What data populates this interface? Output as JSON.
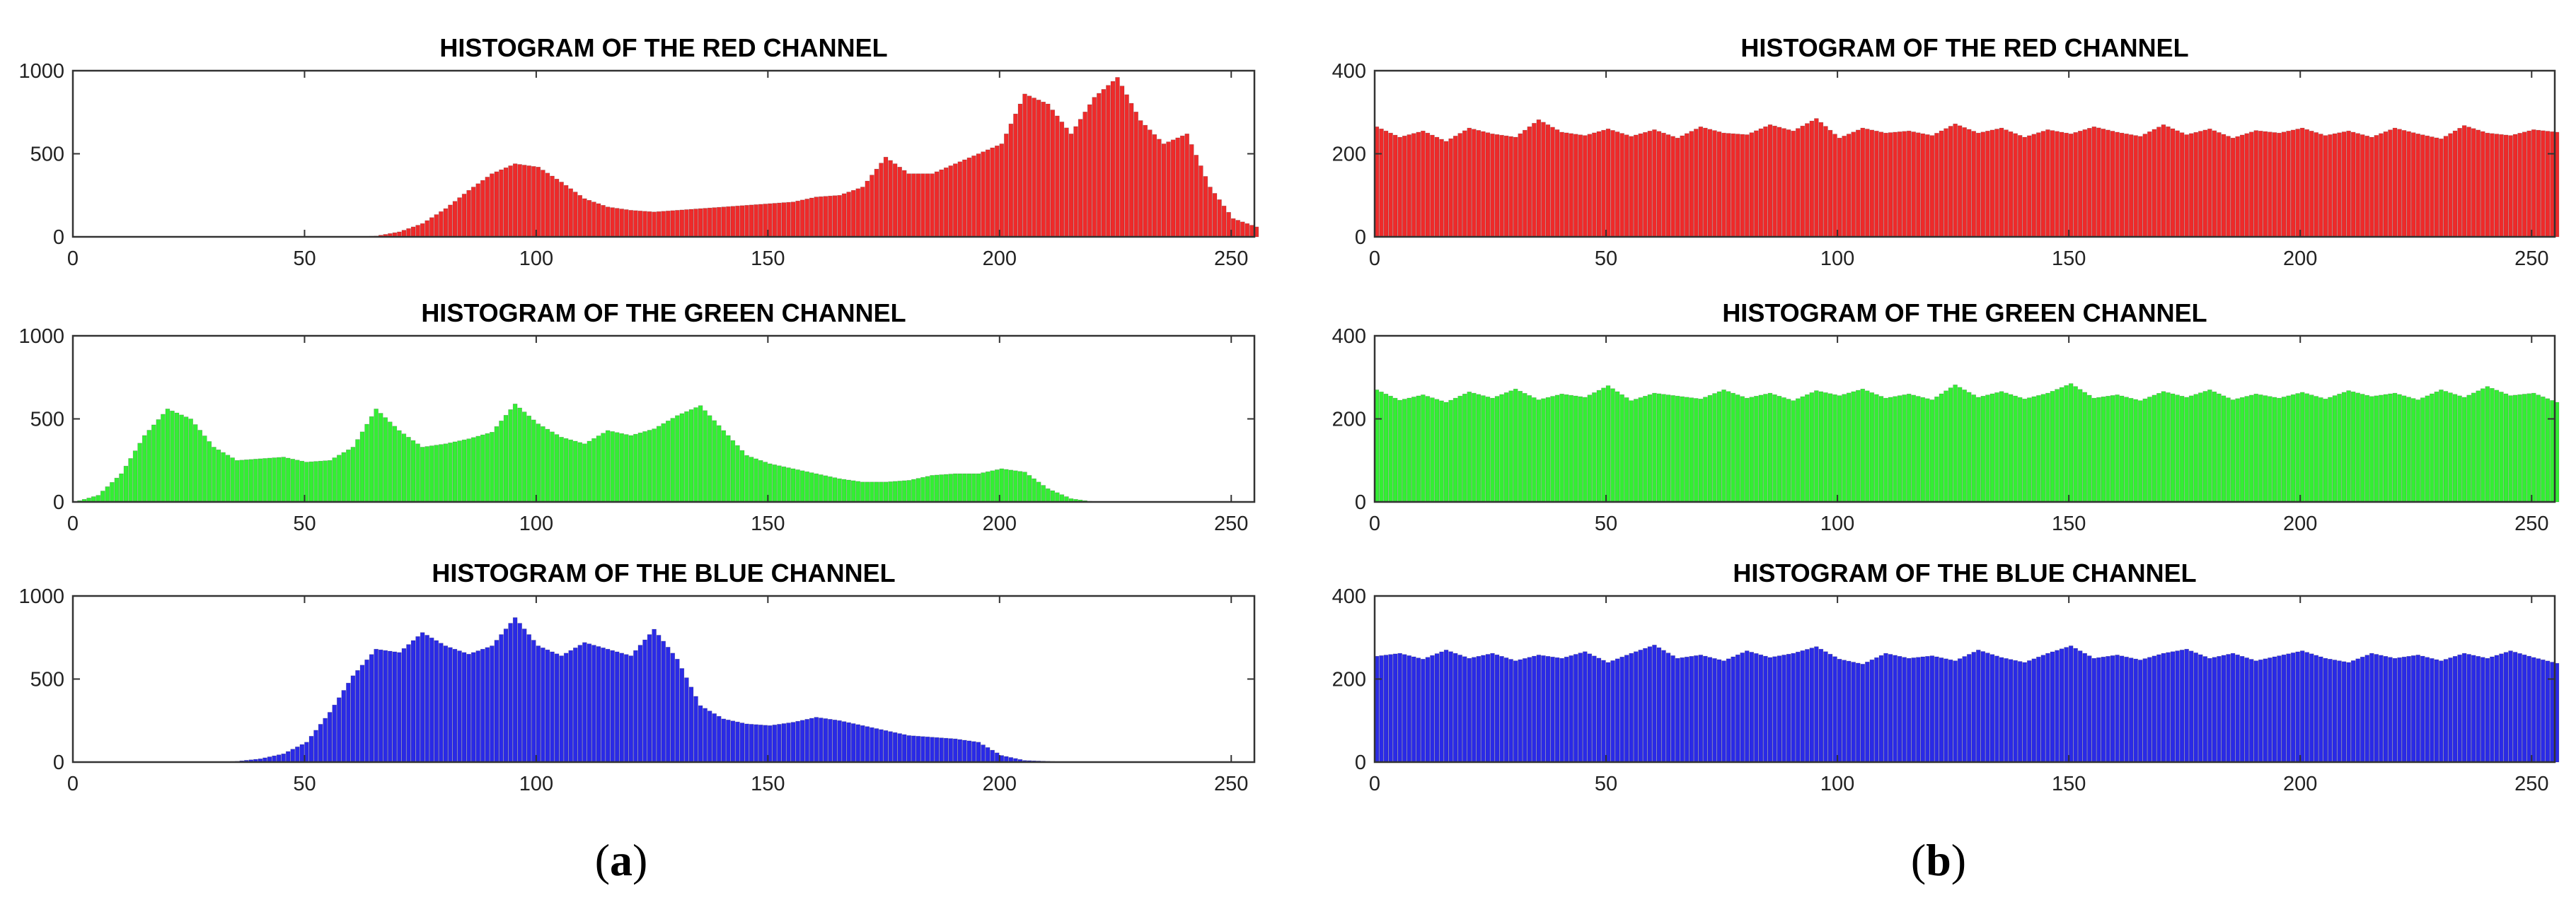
{
  "captions": [
    {
      "open": "(",
      "letter": "a",
      "close": ")"
    },
    {
      "open": "(",
      "letter": "b",
      "close": ")"
    }
  ],
  "chart_data": [
    {
      "type": "bar",
      "panel": "a",
      "title": "HISTOGRAM OF THE RED CHANNEL",
      "color": "#ee2a2a",
      "xlim": [
        0,
        255
      ],
      "ylim": [
        0,
        1000
      ],
      "xticks": [
        0,
        50,
        100,
        150,
        200,
        250
      ],
      "yticks": [
        0,
        500,
        1000
      ],
      "x": [
        0,
        5,
        10,
        15,
        20,
        25,
        30,
        35,
        40,
        45,
        50,
        55,
        60,
        65,
        70,
        75,
        80,
        85,
        90,
        95,
        100,
        105,
        110,
        115,
        120,
        125,
        130,
        135,
        140,
        145,
        150,
        155,
        160,
        165,
        170,
        175,
        180,
        185,
        190,
        195,
        200,
        205,
        210,
        215,
        220,
        225,
        230,
        235,
        240,
        245,
        250,
        255
      ],
      "values": [
        0,
        0,
        0,
        0,
        0,
        0,
        0,
        0,
        0,
        0,
        0,
        0,
        0,
        5,
        30,
        80,
        170,
        280,
        380,
        440,
        420,
        330,
        230,
        180,
        160,
        150,
        160,
        170,
        180,
        190,
        200,
        210,
        240,
        250,
        300,
        480,
        380,
        380,
        440,
        500,
        560,
        860,
        800,
        620,
        840,
        960,
        700,
        560,
        620,
        300,
        110,
        60
      ]
    },
    {
      "type": "bar",
      "panel": "a",
      "title": "HISTOGRAM OF THE GREEN CHANNEL",
      "color": "#33ee33",
      "xlim": [
        0,
        255
      ],
      "ylim": [
        0,
        1000
      ],
      "xticks": [
        0,
        50,
        100,
        150,
        200,
        250
      ],
      "yticks": [
        0,
        500,
        1000
      ],
      "x": [
        0,
        5,
        10,
        15,
        20,
        25,
        30,
        35,
        40,
        45,
        50,
        55,
        60,
        65,
        70,
        75,
        80,
        85,
        90,
        95,
        100,
        105,
        110,
        115,
        120,
        125,
        130,
        135,
        140,
        145,
        150,
        155,
        160,
        165,
        170,
        175,
        180,
        185,
        190,
        195,
        200,
        205,
        210,
        215,
        220,
        225,
        230,
        235,
        240,
        245,
        250,
        255
      ],
      "values": [
        0,
        40,
        170,
        400,
        560,
        500,
        330,
        250,
        260,
        270,
        240,
        250,
        330,
        560,
        430,
        330,
        350,
        380,
        420,
        590,
        470,
        390,
        350,
        430,
        400,
        440,
        520,
        580,
        430,
        280,
        230,
        200,
        170,
        140,
        120,
        120,
        130,
        160,
        170,
        170,
        200,
        180,
        80,
        20,
        0,
        0,
        0,
        0,
        0,
        0,
        0,
        0
      ]
    },
    {
      "type": "bar",
      "panel": "a",
      "title": "HISTOGRAM OF THE BLUE CHANNEL",
      "color": "#2a2ae6",
      "xlim": [
        0,
        255
      ],
      "ylim": [
        0,
        1000
      ],
      "xticks": [
        0,
        50,
        100,
        150,
        200,
        250
      ],
      "yticks": [
        0,
        500,
        1000
      ],
      "x": [
        0,
        5,
        10,
        15,
        20,
        25,
        30,
        35,
        40,
        45,
        50,
        55,
        60,
        65,
        70,
        75,
        80,
        85,
        90,
        95,
        100,
        105,
        110,
        115,
        120,
        125,
        130,
        135,
        140,
        145,
        150,
        155,
        160,
        165,
        170,
        175,
        180,
        185,
        190,
        195,
        200,
        205,
        210,
        215,
        220,
        225,
        230,
        235,
        240,
        245,
        250,
        255
      ],
      "values": [
        0,
        0,
        0,
        0,
        0,
        0,
        0,
        5,
        20,
        50,
        120,
        300,
        520,
        680,
        660,
        780,
        700,
        650,
        700,
        870,
        700,
        640,
        720,
        680,
        640,
        800,
        620,
        340,
        260,
        230,
        220,
        240,
        270,
        250,
        220,
        190,
        160,
        150,
        140,
        120,
        40,
        10,
        5,
        0,
        0,
        0,
        0,
        0,
        0,
        0,
        0,
        0
      ]
    },
    {
      "type": "bar",
      "panel": "b",
      "title": "HISTOGRAM OF THE RED CHANNEL",
      "color": "#ee2a2a",
      "xlim": [
        0,
        255
      ],
      "ylim": [
        0,
        400
      ],
      "xticks": [
        0,
        50,
        100,
        150,
        200,
        250
      ],
      "yticks": [
        0,
        200,
        400
      ],
      "x": [
        0,
        5,
        10,
        15,
        20,
        25,
        30,
        35,
        40,
        45,
        50,
        55,
        60,
        65,
        70,
        75,
        80,
        85,
        90,
        95,
        100,
        105,
        110,
        115,
        120,
        125,
        130,
        135,
        140,
        145,
        150,
        155,
        160,
        165,
        170,
        175,
        180,
        185,
        190,
        195,
        200,
        205,
        210,
        215,
        220,
        225,
        230,
        235,
        240,
        245,
        250,
        255
      ],
      "values": [
        265,
        240,
        255,
        230,
        262,
        248,
        240,
        282,
        252,
        244,
        260,
        242,
        258,
        238,
        265,
        250,
        246,
        270,
        255,
        285,
        238,
        262,
        250,
        255,
        244,
        272,
        250,
        262,
        240,
        258,
        248,
        265,
        252,
        242,
        270,
        246,
        260,
        238,
        256,
        250,
        262,
        244,
        255,
        240,
        262,
        248,
        236,
        268,
        250,
        244,
        258,
        252
      ]
    },
    {
      "type": "bar",
      "panel": "b",
      "title": "HISTOGRAM OF THE GREEN CHANNEL",
      "color": "#33ee33",
      "xlim": [
        0,
        255
      ],
      "ylim": [
        0,
        400
      ],
      "xticks": [
        0,
        50,
        100,
        150,
        200,
        250
      ],
      "yticks": [
        0,
        200,
        400
      ],
      "x": [
        0,
        5,
        10,
        15,
        20,
        25,
        30,
        35,
        40,
        45,
        50,
        55,
        60,
        65,
        70,
        75,
        80,
        85,
        90,
        95,
        100,
        105,
        110,
        115,
        120,
        125,
        130,
        135,
        140,
        145,
        150,
        155,
        160,
        165,
        170,
        175,
        180,
        185,
        190,
        195,
        200,
        205,
        210,
        215,
        220,
        225,
        230,
        235,
        240,
        245,
        250,
        255
      ],
      "values": [
        270,
        245,
        258,
        240,
        265,
        250,
        272,
        246,
        260,
        252,
        280,
        244,
        262,
        255,
        248,
        270,
        250,
        262,
        244,
        268,
        256,
        272,
        250,
        260,
        246,
        282,
        252,
        266,
        248,
        262,
        285,
        250,
        258,
        244,
        266,
        252,
        270,
        246,
        260,
        250,
        264,
        248,
        268,
        254,
        262,
        246,
        270,
        252,
        278,
        256,
        262,
        240
      ]
    },
    {
      "type": "bar",
      "panel": "b",
      "title": "HISTOGRAM OF THE BLUE CHANNEL",
      "color": "#2a2ae6",
      "xlim": [
        0,
        255
      ],
      "ylim": [
        0,
        400
      ],
      "xticks": [
        0,
        50,
        100,
        150,
        200,
        250
      ],
      "yticks": [
        0,
        200,
        400
      ],
      "x": [
        0,
        5,
        10,
        15,
        20,
        25,
        30,
        35,
        40,
        45,
        50,
        55,
        60,
        65,
        70,
        75,
        80,
        85,
        90,
        95,
        100,
        105,
        110,
        115,
        120,
        125,
        130,
        135,
        140,
        145,
        150,
        155,
        160,
        165,
        170,
        175,
        180,
        185,
        190,
        195,
        200,
        205,
        210,
        215,
        220,
        225,
        230,
        235,
        240,
        245,
        250,
        255
      ],
      "values": [
        255,
        262,
        248,
        270,
        250,
        262,
        244,
        258,
        250,
        266,
        240,
        262,
        282,
        250,
        258,
        244,
        268,
        252,
        262,
        278,
        248,
        236,
        262,
        250,
        256,
        244,
        270,
        252,
        240,
        262,
        280,
        250,
        258,
        246,
        262,
        272,
        250,
        262,
        244,
        256,
        268,
        250,
        240,
        262,
        250,
        258,
        244,
        262,
        250,
        268,
        252,
        238
      ]
    }
  ]
}
